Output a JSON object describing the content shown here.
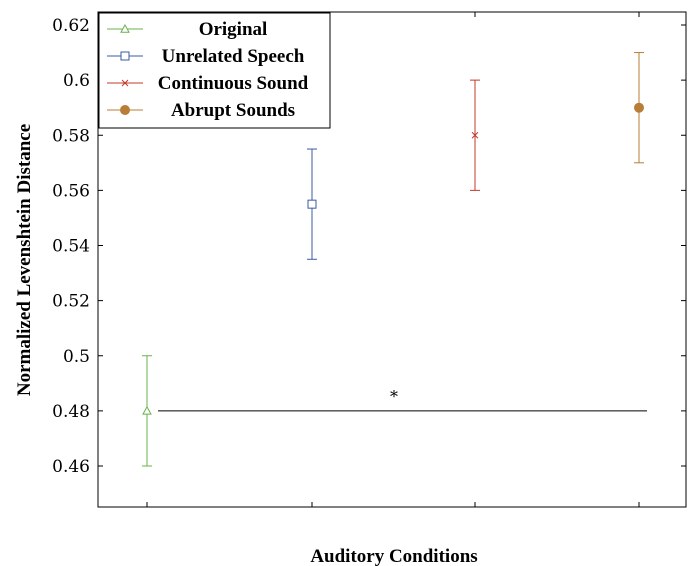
{
  "chart_data": {
    "type": "scatter",
    "title": "",
    "xlabel": "Auditory Conditions",
    "ylabel": "Normalized Levenshtein Distance",
    "ylim": [
      0.445,
      0.625
    ],
    "yticks": [
      0.46,
      0.48,
      0.5,
      0.52,
      0.54,
      0.56,
      0.58,
      0.6,
      0.62
    ],
    "ytick_labels": [
      "0.46",
      "0.48",
      "0.5",
      "0.52",
      "0.54",
      "0.56",
      "0.58",
      "0.6",
      "0.62"
    ],
    "grid": false,
    "legend_position": "top-left",
    "series": [
      {
        "name": "Original",
        "x": 1,
        "y": 0.48,
        "error": 0.02,
        "color": "#6ab04c",
        "marker": "triangle-open"
      },
      {
        "name": "Unrelated Speech",
        "x": 2,
        "y": 0.555,
        "error": 0.02,
        "color": "#3b5ba5",
        "marker": "square-open"
      },
      {
        "name": "Continuous Sound",
        "x": 3,
        "y": 0.58,
        "error": 0.02,
        "color": "#c0392b",
        "marker": "x"
      },
      {
        "name": "Abrupt Sounds",
        "x": 4,
        "y": 0.59,
        "error": 0.02,
        "color": "#b87d36",
        "marker": "circle-filled"
      }
    ],
    "annotations": [
      {
        "text": "*",
        "type": "significance-bracket",
        "from_x": 1,
        "to_x": 4,
        "y": 0.48
      }
    ]
  }
}
